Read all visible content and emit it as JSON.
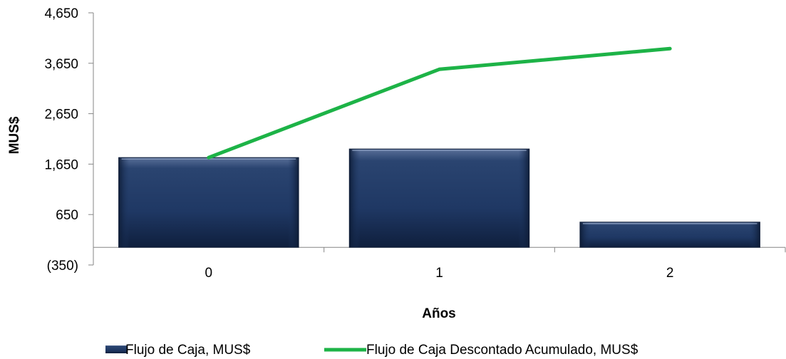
{
  "chart_data": {
    "type": "bar",
    "categories": [
      "0",
      "1",
      "2"
    ],
    "xlabel": "Años",
    "ylabel": "MUS$",
    "ylim": [
      -350,
      4650
    ],
    "yticks": [
      {
        "value": 4650,
        "label": "4,650",
        "color": "#000000"
      },
      {
        "value": 3650,
        "label": "3,650",
        "color": "#000000"
      },
      {
        "value": 2650,
        "label": "2,650",
        "color": "#000000"
      },
      {
        "value": 1650,
        "label": "1,650",
        "color": "#000000"
      },
      {
        "value": 650,
        "label": "650",
        "color": "#000000"
      },
      {
        "value": -350,
        "label": "(350)",
        "color": "#ff0000"
      }
    ],
    "series": [
      {
        "name": "Flujo de Caja, MUS$",
        "kind": "bar",
        "color": "#1f3864",
        "values": [
          1780,
          1950,
          500
        ]
      },
      {
        "name": "Flujo de Caja Descontado Acumulado, MUS$",
        "kind": "line",
        "color": "#1db347",
        "values": [
          1780,
          3530,
          3940
        ]
      }
    ],
    "baseline": 0,
    "grid": false,
    "legend_position": "bottom"
  }
}
